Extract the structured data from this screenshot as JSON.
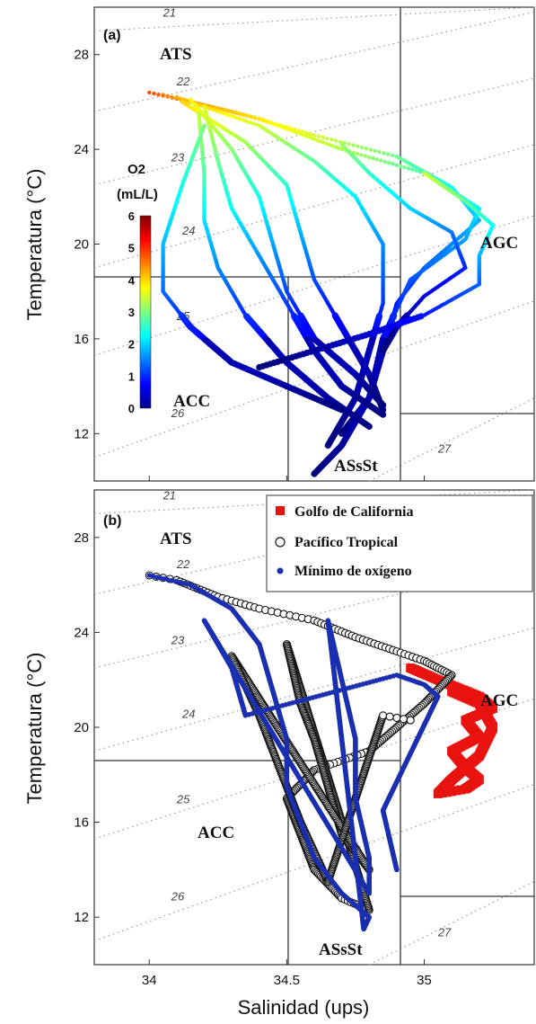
{
  "chart_data": [
    {
      "panel": "(a)",
      "type": "scatter",
      "xlabel": "",
      "ylabel": "Temperatura (°C)",
      "xlim": [
        33.8,
        35.4
      ],
      "ylim": [
        10,
        30
      ],
      "xticks": [
        "34",
        "34.5",
        "35"
      ],
      "yticks": [
        "12",
        "16",
        "20",
        "24",
        "28"
      ],
      "water_masses": [
        "ATS",
        "AGC",
        "ACC",
        "ASsSt"
      ],
      "isopycnals": [
        "21",
        "22",
        "23",
        "24",
        "25",
        "26",
        "27"
      ],
      "colorbar": {
        "title": "O2",
        "unit": "(mL/L)",
        "ticks": [
          "0",
          "1",
          "2",
          "3",
          "4",
          "5",
          "6"
        ],
        "range": [
          0,
          6
        ]
      },
      "profiles": [
        {
          "o2_surface": 4.8,
          "points": [
            [
              34.0,
              26.4
            ],
            [
              34.3,
              25.6
            ],
            [
              34.6,
              24.6
            ],
            [
              34.9,
              23.7
            ],
            [
              35.1,
              22.4
            ],
            [
              35.2,
              21.0
            ],
            [
              35.0,
              19.0
            ],
            [
              34.9,
              17.5
            ],
            [
              34.85,
              15.5
            ],
            [
              34.8,
              13.5
            ],
            [
              34.7,
              12.0
            ]
          ]
        },
        {
          "o2_surface": 4.5,
          "points": [
            [
              34.05,
              26.3
            ],
            [
              34.4,
              25.3
            ],
            [
              34.7,
              24.0
            ],
            [
              35.0,
              23.0
            ],
            [
              35.2,
              21.5
            ],
            [
              35.15,
              20.2
            ],
            [
              34.95,
              18.5
            ],
            [
              34.85,
              16.0
            ],
            [
              34.8,
              13.5
            ],
            [
              34.7,
              11.5
            ],
            [
              34.6,
              10.3
            ]
          ]
        },
        {
          "o2_surface": 4.2,
          "points": [
            [
              34.1,
              26.2
            ],
            [
              34.4,
              25.0
            ],
            [
              34.6,
              23.5
            ],
            [
              34.75,
              22.0
            ],
            [
              34.85,
              20.0
            ],
            [
              34.85,
              17.5
            ],
            [
              34.8,
              15.5
            ],
            [
              34.75,
              13.5
            ],
            [
              34.65,
              11.5
            ]
          ]
        },
        {
          "o2_surface": 4.0,
          "points": [
            [
              34.12,
              26.0
            ],
            [
              34.35,
              24.3
            ],
            [
              34.5,
              22.5
            ],
            [
              34.55,
              20.5
            ],
            [
              34.6,
              18.5
            ],
            [
              34.7,
              16.5
            ],
            [
              34.8,
              14.5
            ],
            [
              34.85,
              13.0
            ]
          ]
        },
        {
          "o2_surface": 3.8,
          "points": [
            [
              34.15,
              26.1
            ],
            [
              34.3,
              24.0
            ],
            [
              34.4,
              22.0
            ],
            [
              34.45,
              20.0
            ],
            [
              34.5,
              18.0
            ],
            [
              34.6,
              16.0
            ],
            [
              34.75,
              14.5
            ],
            [
              34.85,
              13.2
            ]
          ]
        },
        {
          "o2_surface": 3.6,
          "points": [
            [
              34.2,
              25.8
            ],
            [
              34.25,
              23.5
            ],
            [
              34.3,
              21.5
            ],
            [
              34.4,
              19.5
            ],
            [
              34.5,
              17.5
            ],
            [
              34.6,
              15.5
            ],
            [
              34.7,
              14.0
            ],
            [
              34.85,
              12.8
            ]
          ]
        },
        {
          "o2_surface": 3.4,
          "points": [
            [
              34.18,
              25.5
            ],
            [
              34.2,
              23.0
            ],
            [
              34.2,
              21.0
            ],
            [
              34.25,
              19.0
            ],
            [
              34.35,
              17.0
            ],
            [
              34.5,
              15.0
            ],
            [
              34.65,
              13.5
            ],
            [
              34.8,
              12.3
            ]
          ]
        },
        {
          "o2_surface": 3.0,
          "points": [
            [
              34.2,
              25.0
            ],
            [
              34.12,
              22.5
            ],
            [
              34.05,
              20.0
            ],
            [
              34.05,
              18.0
            ],
            [
              34.15,
              16.5
            ],
            [
              34.3,
              15.0
            ],
            [
              34.5,
              14.0
            ],
            [
              34.7,
              13.0
            ]
          ]
        },
        {
          "o2_surface": 3.2,
          "points": [
            [
              34.7,
              24.2
            ],
            [
              34.8,
              23.0
            ],
            [
              34.95,
              21.5
            ],
            [
              35.1,
              20.5
            ],
            [
              35.15,
              19.0
            ],
            [
              35.0,
              17.8
            ],
            [
              34.9,
              16.5
            ],
            [
              34.85,
              15.5
            ]
          ]
        },
        {
          "o2_surface": 3.5,
          "points": [
            [
              35.0,
              23.0
            ],
            [
              35.15,
              21.8
            ],
            [
              35.25,
              20.8
            ],
            [
              35.2,
              19.5
            ],
            [
              35.2,
              18.3
            ],
            [
              35.0,
              17.0
            ],
            [
              34.8,
              16.2
            ],
            [
              34.6,
              15.5
            ],
            [
              34.4,
              14.8
            ]
          ]
        }
      ]
    },
    {
      "panel": "(b)",
      "type": "scatter",
      "xlabel": "Salinidad (ups)",
      "ylabel": "Temperatura (°C)",
      "xlim": [
        33.8,
        35.4
      ],
      "ylim": [
        10,
        30
      ],
      "xticks": [
        "34",
        "34.5",
        "35"
      ],
      "yticks": [
        "12",
        "16",
        "20",
        "24",
        "28"
      ],
      "water_masses": [
        "ATS",
        "AGC",
        "ACC",
        "ASsSt"
      ],
      "isopycnals": [
        "21",
        "22",
        "23",
        "24",
        "25",
        "26",
        "27"
      ],
      "series": [
        {
          "name": "Golfo de California",
          "marker": "square",
          "color": "#e8130f",
          "points": [
            [
              34.95,
              22.5
            ],
            [
              35.05,
              22.0
            ],
            [
              35.2,
              21.3
            ],
            [
              35.25,
              20.8
            ],
            [
              35.15,
              20.3
            ],
            [
              35.2,
              19.6
            ],
            [
              35.1,
              19.0
            ],
            [
              35.15,
              18.3
            ],
            [
              35.2,
              17.8
            ],
            [
              35.15,
              17.4
            ],
            [
              35.05,
              17.2
            ],
            [
              35.1,
              17.8
            ],
            [
              35.2,
              18.8
            ],
            [
              35.25,
              20.0
            ],
            [
              35.2,
              21.0
            ],
            [
              35.1,
              21.5
            ]
          ]
        },
        {
          "name": "Pacífico Tropical",
          "marker": "circle-open",
          "color": "#111111",
          "points": [
            [
              34.0,
              26.4
            ],
            [
              34.1,
              26.2
            ],
            [
              34.25,
              25.5
            ],
            [
              34.4,
              25.0
            ],
            [
              34.6,
              24.5
            ],
            [
              34.75,
              23.8
            ],
            [
              34.9,
              23.2
            ],
            [
              35.0,
              22.8
            ],
            [
              35.1,
              22.2
            ],
            [
              35.0,
              21.0
            ],
            [
              34.9,
              20.0
            ],
            [
              34.8,
              19.0
            ],
            [
              34.6,
              18.2
            ],
            [
              34.5,
              17.0
            ],
            [
              34.55,
              15.5
            ],
            [
              34.6,
              14.0
            ],
            [
              34.7,
              12.8
            ],
            [
              34.8,
              12.3
            ],
            [
              34.5,
              23.5
            ],
            [
              34.55,
              21.0
            ],
            [
              34.6,
              19.5
            ],
            [
              34.65,
              17.5
            ],
            [
              34.7,
              15.5
            ],
            [
              34.8,
              14.0
            ],
            [
              34.3,
              23.0
            ],
            [
              34.4,
              20.5
            ],
            [
              34.55,
              16.0
            ],
            [
              34.65,
              13.5
            ],
            [
              34.85,
              20.5
            ],
            [
              34.95,
              20.3
            ]
          ]
        },
        {
          "name": "Mínimo de oxígeno",
          "marker": "dot",
          "color": "#1b2fb0",
          "points": [
            [
              34.0,
              26.4
            ],
            [
              34.15,
              26.0
            ],
            [
              34.3,
              25.0
            ],
            [
              34.4,
              23.5
            ],
            [
              34.45,
              21.5
            ],
            [
              34.5,
              19.5
            ],
            [
              34.5,
              17.5
            ],
            [
              34.55,
              16.0
            ],
            [
              34.6,
              14.5
            ],
            [
              34.7,
              13.0
            ],
            [
              34.8,
              12.0
            ],
            [
              34.78,
              11.5
            ],
            [
              34.65,
              24.5
            ],
            [
              34.7,
              22.0
            ],
            [
              34.75,
              19.5
            ],
            [
              34.75,
              17.0
            ],
            [
              34.8,
              14.5
            ],
            [
              34.8,
              13.0
            ],
            [
              34.2,
              24.5
            ],
            [
              34.3,
              22.5
            ],
            [
              34.35,
              20.5
            ],
            [
              34.9,
              22.2
            ],
            [
              35.0,
              21.8
            ],
            [
              35.05,
              21.3
            ],
            [
              34.85,
              16.5
            ],
            [
              34.9,
              14.0
            ]
          ]
        }
      ]
    }
  ]
}
